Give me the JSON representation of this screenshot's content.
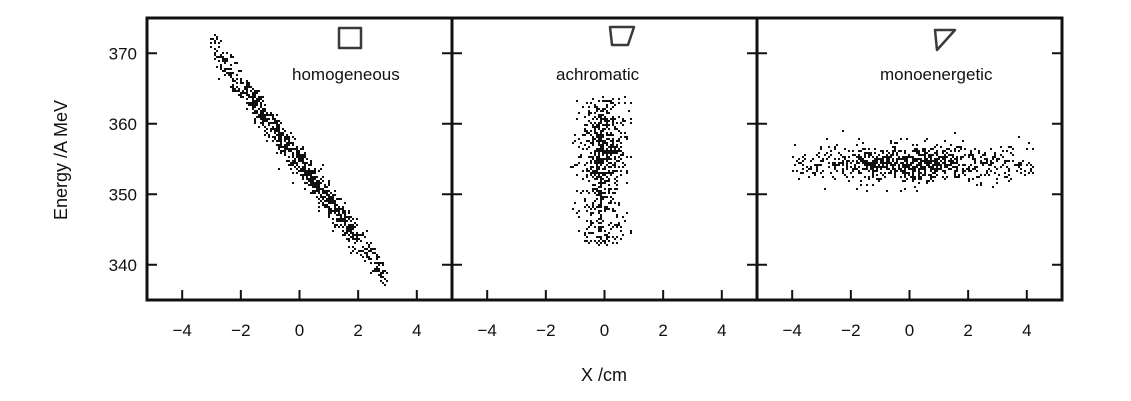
{
  "chart_data": {
    "type": "scatter",
    "xlabel": "X /cm",
    "ylabel": "Energy /A MeV",
    "xlim": [
      -5.2,
      5.2
    ],
    "ylim": [
      335,
      375
    ],
    "x_ticks": [
      -4,
      -2,
      0,
      2,
      4
    ],
    "y_ticks": [
      340,
      350,
      360,
      370
    ],
    "panels": [
      {
        "label": "homogeneous",
        "icon": "square-icon",
        "distribution": {
          "kind": "diagonal-band",
          "x_range": [
            -3.1,
            3.0
          ],
          "energy_at_x0": 354.5,
          "slope_mev_per_cm": -5.5,
          "energy_spread": 1.2,
          "n_points": 950
        }
      },
      {
        "label": "achromatic",
        "icon": "trapezoid-icon",
        "distribution": {
          "kind": "vertical-band",
          "x_range": [
            -1.2,
            0.9
          ],
          "energy_range": [
            343,
            364
          ],
          "x_center": -0.1,
          "energy_center": 355.5,
          "n_points": 700
        }
      },
      {
        "label": "monoenergetic",
        "icon": "triangle-icon",
        "distribution": {
          "kind": "horizontal-band",
          "x_range": [
            -4.0,
            4.2
          ],
          "energy_range": [
            350,
            359
          ],
          "x_center": 0.1,
          "energy_center": 354.5,
          "n_points": 900
        }
      }
    ],
    "colors": {
      "points": "#111111",
      "axes": "#111111",
      "icon_stroke": "#3a3a3a"
    }
  }
}
